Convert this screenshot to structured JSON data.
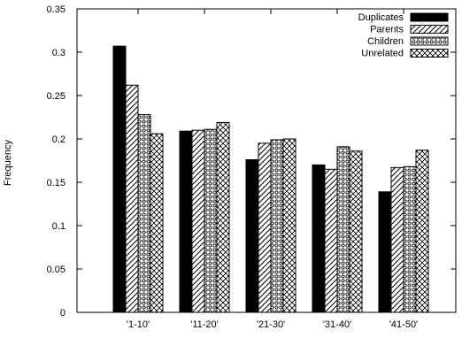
{
  "chart_data": {
    "type": "bar",
    "ylabel": "Frequency",
    "xlabel": "",
    "title": "",
    "ylim": [
      0,
      0.35
    ],
    "yticks": [
      "0",
      "0.05",
      "0.1",
      "0.15",
      "0.2",
      "0.25",
      "0.3",
      "0.35"
    ],
    "categories": [
      "'1-10'",
      "'11-20'",
      "'21-30'",
      "'31-40'",
      "'41-50'"
    ],
    "legend_position": "top-right",
    "grid": false,
    "series": [
      {
        "name": "Duplicates",
        "pattern": "solid",
        "values": [
          0.307,
          0.209,
          0.176,
          0.17,
          0.139
        ]
      },
      {
        "name": "Parents",
        "pattern": "diagonal",
        "values": [
          0.262,
          0.21,
          0.195,
          0.165,
          0.167
        ]
      },
      {
        "name": "Children",
        "pattern": "dots",
        "values": [
          0.228,
          0.211,
          0.199,
          0.191,
          0.168
        ]
      },
      {
        "name": "Unrelated",
        "pattern": "crosshatch",
        "values": [
          0.206,
          0.219,
          0.2,
          0.186,
          0.187
        ]
      }
    ]
  }
}
